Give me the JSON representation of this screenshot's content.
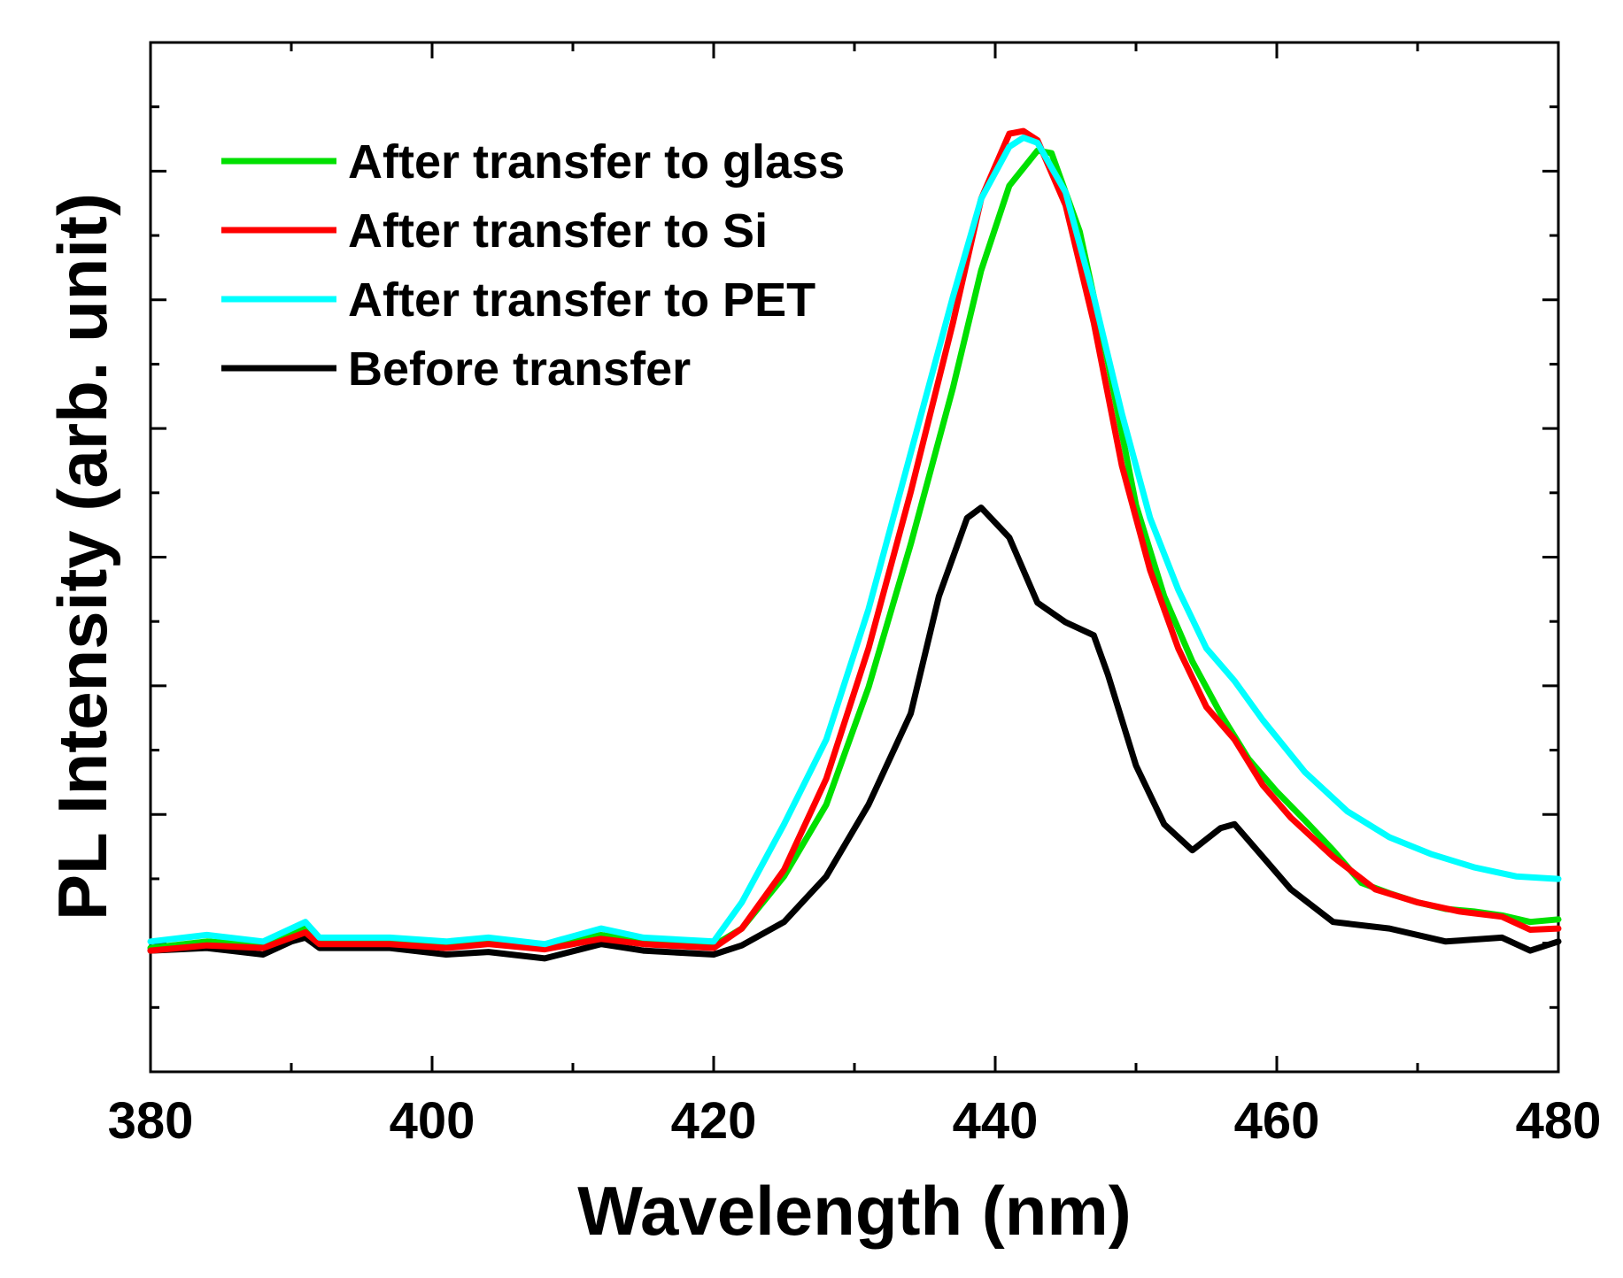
{
  "chart_data": {
    "type": "line",
    "xlabel": "Wavelength (nm)",
    "ylabel": "PL Intensity (arb. unit)",
    "xlim": [
      380,
      480
    ],
    "ylim": [
      -0.95,
      6.95
    ],
    "x_ticks": [
      380,
      400,
      420,
      440,
      460,
      480
    ],
    "y_ticks_count": 7,
    "legend_position": "top-left",
    "series": [
      {
        "name": "After transfer to glass",
        "color": "#00e000",
        "points": [
          [
            380,
            0.0
          ],
          [
            384,
            0.05
          ],
          [
            388,
            0.02
          ],
          [
            390,
            0.12
          ],
          [
            391,
            0.15
          ],
          [
            392,
            0.05
          ],
          [
            397,
            0.05
          ],
          [
            401,
            0.02
          ],
          [
            404,
            0.05
          ],
          [
            408,
            0.01
          ],
          [
            412,
            0.1
          ],
          [
            415,
            0.05
          ],
          [
            420,
            0.02
          ],
          [
            422,
            0.15
          ],
          [
            425,
            0.55
          ],
          [
            428,
            1.1
          ],
          [
            431,
            2.0
          ],
          [
            434,
            3.1
          ],
          [
            437,
            4.3
          ],
          [
            439,
            5.2
          ],
          [
            441,
            5.85
          ],
          [
            443,
            6.12
          ],
          [
            444,
            6.1
          ],
          [
            446,
            5.5
          ],
          [
            448,
            4.5
          ],
          [
            450,
            3.4
          ],
          [
            452,
            2.7
          ],
          [
            454,
            2.2
          ],
          [
            456,
            1.8
          ],
          [
            458,
            1.45
          ],
          [
            460,
            1.2
          ],
          [
            462,
            0.98
          ],
          [
            464,
            0.75
          ],
          [
            466,
            0.5
          ],
          [
            468,
            0.42
          ],
          [
            470,
            0.35
          ],
          [
            472,
            0.3
          ],
          [
            474,
            0.28
          ],
          [
            476,
            0.25
          ],
          [
            478,
            0.2
          ],
          [
            480,
            0.22
          ]
        ]
      },
      {
        "name": "After transfer to Si",
        "color": "#ff0000",
        "points": [
          [
            380,
            -0.02
          ],
          [
            384,
            0.02
          ],
          [
            388,
            0.0
          ],
          [
            390,
            0.08
          ],
          [
            391,
            0.12
          ],
          [
            392,
            0.03
          ],
          [
            397,
            0.03
          ],
          [
            401,
            0.0
          ],
          [
            404,
            0.03
          ],
          [
            408,
            -0.01
          ],
          [
            412,
            0.07
          ],
          [
            415,
            0.03
          ],
          [
            420,
            0.0
          ],
          [
            422,
            0.15
          ],
          [
            425,
            0.6
          ],
          [
            428,
            1.3
          ],
          [
            431,
            2.3
          ],
          [
            434,
            3.5
          ],
          [
            437,
            4.8
          ],
          [
            439,
            5.75
          ],
          [
            441,
            6.25
          ],
          [
            442,
            6.27
          ],
          [
            443,
            6.2
          ],
          [
            445,
            5.7
          ],
          [
            447,
            4.8
          ],
          [
            449,
            3.7
          ],
          [
            451,
            2.9
          ],
          [
            453,
            2.3
          ],
          [
            455,
            1.85
          ],
          [
            457,
            1.6
          ],
          [
            459,
            1.25
          ],
          [
            461,
            1.0
          ],
          [
            464,
            0.7
          ],
          [
            467,
            0.45
          ],
          [
            470,
            0.35
          ],
          [
            473,
            0.28
          ],
          [
            476,
            0.24
          ],
          [
            478,
            0.14
          ],
          [
            480,
            0.15
          ]
        ]
      },
      {
        "name": "After transfer to PET",
        "color": "#00ffff",
        "points": [
          [
            380,
            0.05
          ],
          [
            384,
            0.1
          ],
          [
            388,
            0.05
          ],
          [
            390,
            0.15
          ],
          [
            391,
            0.2
          ],
          [
            392,
            0.08
          ],
          [
            397,
            0.08
          ],
          [
            401,
            0.05
          ],
          [
            404,
            0.08
          ],
          [
            408,
            0.03
          ],
          [
            412,
            0.15
          ],
          [
            415,
            0.08
          ],
          [
            420,
            0.05
          ],
          [
            422,
            0.35
          ],
          [
            425,
            0.95
          ],
          [
            428,
            1.6
          ],
          [
            431,
            2.6
          ],
          [
            434,
            3.8
          ],
          [
            437,
            5.0
          ],
          [
            439,
            5.75
          ],
          [
            441,
            6.15
          ],
          [
            442,
            6.22
          ],
          [
            443,
            6.18
          ],
          [
            445,
            5.8
          ],
          [
            447,
            5.0
          ],
          [
            449,
            4.1
          ],
          [
            451,
            3.3
          ],
          [
            453,
            2.75
          ],
          [
            455,
            2.3
          ],
          [
            457,
            2.05
          ],
          [
            459,
            1.75
          ],
          [
            462,
            1.35
          ],
          [
            465,
            1.05
          ],
          [
            468,
            0.85
          ],
          [
            471,
            0.72
          ],
          [
            474,
            0.62
          ],
          [
            477,
            0.55
          ],
          [
            480,
            0.53
          ]
        ]
      },
      {
        "name": "Before transfer",
        "color": "#000000",
        "points": [
          [
            380,
            -0.02
          ],
          [
            384,
            0.0
          ],
          [
            388,
            -0.05
          ],
          [
            390,
            0.05
          ],
          [
            391,
            0.08
          ],
          [
            392,
            0.0
          ],
          [
            397,
            0.0
          ],
          [
            401,
            -0.05
          ],
          [
            404,
            -0.03
          ],
          [
            408,
            -0.08
          ],
          [
            412,
            0.03
          ],
          [
            415,
            -0.02
          ],
          [
            420,
            -0.05
          ],
          [
            422,
            0.02
          ],
          [
            425,
            0.2
          ],
          [
            428,
            0.55
          ],
          [
            431,
            1.1
          ],
          [
            434,
            1.8
          ],
          [
            436,
            2.7
          ],
          [
            438,
            3.3
          ],
          [
            439,
            3.38
          ],
          [
            441,
            3.15
          ],
          [
            443,
            2.65
          ],
          [
            445,
            2.5
          ],
          [
            447,
            2.4
          ],
          [
            448,
            2.1
          ],
          [
            450,
            1.4
          ],
          [
            452,
            0.95
          ],
          [
            454,
            0.75
          ],
          [
            456,
            0.92
          ],
          [
            457,
            0.95
          ],
          [
            459,
            0.7
          ],
          [
            461,
            0.45
          ],
          [
            464,
            0.2
          ],
          [
            468,
            0.15
          ],
          [
            472,
            0.05
          ],
          [
            476,
            0.08
          ],
          [
            478,
            -0.02
          ],
          [
            480,
            0.05
          ]
        ]
      }
    ]
  }
}
